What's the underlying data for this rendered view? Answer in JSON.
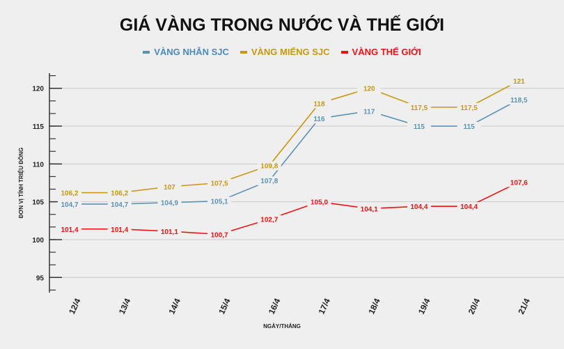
{
  "chart_data": {
    "type": "line",
    "title": "GIÁ VÀNG TRONG NƯỚC VÀ THẾ GIỚI",
    "xlabel": "NGÀY/THÁNG",
    "ylabel": "ĐƠN VỊ TÍNH TRIỆU ĐỒNG",
    "categories": [
      "12/4",
      "13/4",
      "14/4",
      "15/4",
      "16/4",
      "17/4",
      "18/4",
      "19/4",
      "20/4",
      "21/4"
    ],
    "ylim": [
      93,
      122
    ],
    "yticks": [
      95,
      100,
      105,
      110,
      115,
      120
    ],
    "grid": true,
    "legend": "top",
    "series": [
      {
        "name": "VÀNG NHẪN SJC",
        "color": "#5b93b5",
        "values": [
          104.7,
          104.7,
          104.9,
          105.1,
          107.8,
          116,
          117,
          115,
          115,
          118.5
        ],
        "labels": [
          "104,7",
          "104,7",
          "104,9",
          "105,1",
          "107,8",
          "116",
          "117",
          "115",
          "115",
          "118,5"
        ]
      },
      {
        "name": "VÀNG MIẾNG SJC",
        "color": "#c9980e",
        "values": [
          106.2,
          106.2,
          107,
          107.5,
          109.8,
          118,
          120,
          117.5,
          117.5,
          121
        ],
        "labels": [
          "106,2",
          "106,2",
          "107",
          "107,5",
          "109,8",
          "118",
          "120",
          "117,5",
          "117,5",
          "121"
        ]
      },
      {
        "name": "VÀNG THẾ GIỚI",
        "color": "#f01010",
        "values": [
          101.4,
          101.4,
          101.1,
          100.7,
          102.7,
          105.0,
          104.1,
          104.4,
          104.4,
          107.6
        ],
        "labels": [
          "101,4",
          "101,4",
          "101,1",
          "100,7",
          "102,7",
          "105,0",
          "104,1",
          "104,4",
          "104,4",
          "107,6"
        ]
      }
    ]
  }
}
